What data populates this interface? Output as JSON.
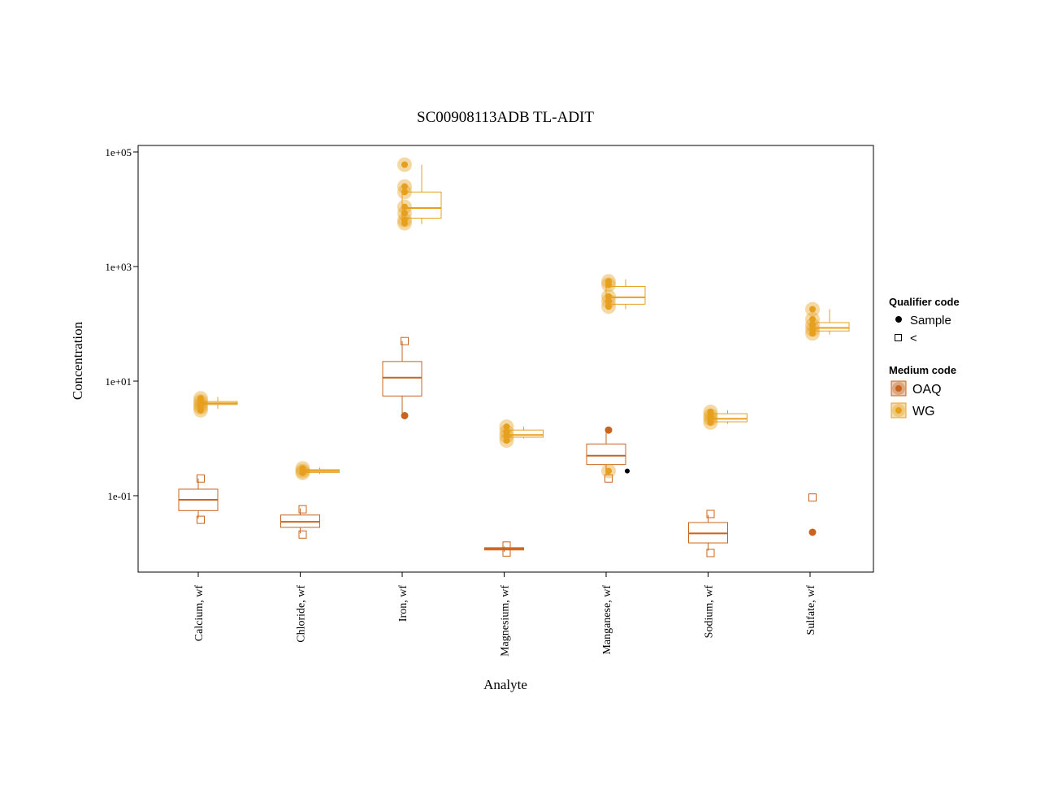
{
  "chart_data": {
    "type": "boxplot",
    "title": "SC00908113ADB TL-ADIT",
    "xlabel": "Analyte",
    "ylabel": "Concentration",
    "scale": "log10",
    "ylim": [
      0.004,
      110000
    ],
    "y_ticks": [
      {
        "value": 0.1,
        "label": "1e-01"
      },
      {
        "value": 10,
        "label": "1e+01"
      },
      {
        "value": 1000,
        "label": "1e+03"
      },
      {
        "value": 100000,
        "label": "1e+05"
      }
    ],
    "categories": [
      "Calcium, wf",
      "Chloride, wf",
      "Iron, wf",
      "Magnesium, wf",
      "Manganese, wf",
      "Sodium, wf",
      "Sulfate, wf"
    ],
    "legend": {
      "placement": "right",
      "qualifier_title": "Qualifier code",
      "qualifier_items": [
        {
          "label": "Sample",
          "shape": "filled-dot"
        },
        {
          "label": "<",
          "shape": "open-square"
        }
      ],
      "medium_title": "Medium code",
      "medium_items": [
        {
          "label": "OAQ",
          "color": "#C8641E"
        },
        {
          "label": "WG",
          "color": "#E6A01E"
        }
      ]
    },
    "colors": {
      "OAQ": "#C8641E",
      "WG": "#E6A01E",
      "sample_black": "#000000"
    },
    "series": [
      {
        "name": "OAQ",
        "boxes": [
          {
            "category": 0,
            "whisker_low": 0.04,
            "q1": 0.055,
            "median": 0.085,
            "q3": 0.13,
            "whisker_high": 0.2
          },
          {
            "category": 1,
            "whisker_low": 0.022,
            "q1": 0.028,
            "median": 0.035,
            "q3": 0.046,
            "whisker_high": 0.06
          },
          {
            "category": 2,
            "whisker_low": 2.8,
            "q1": 5.5,
            "median": 11.5,
            "q3": 22,
            "whisker_high": 50
          },
          {
            "category": 3,
            "whisker_low": 0.0105,
            "q1": 0.0113,
            "median": 0.0118,
            "q3": 0.0124,
            "whisker_high": 0.013
          },
          {
            "category": 4,
            "whisker_low": 0.23,
            "q1": 0.35,
            "median": 0.5,
            "q3": 0.8,
            "whisker_high": 1.25
          },
          {
            "category": 5,
            "whisker_low": 0.011,
            "q1": 0.015,
            "median": 0.022,
            "q3": 0.034,
            "whisker_high": 0.046
          }
        ],
        "points": [
          {
            "category": 0,
            "value": 0.2,
            "shape": "open-square"
          },
          {
            "category": 0,
            "value": 0.038,
            "shape": "open-square"
          },
          {
            "category": 1,
            "value": 0.058,
            "shape": "open-square"
          },
          {
            "category": 1,
            "value": 0.021,
            "shape": "open-square"
          },
          {
            "category": 2,
            "value": 50,
            "shape": "open-square"
          },
          {
            "category": 2,
            "value": 2.5,
            "shape": "filled-dot"
          },
          {
            "category": 3,
            "value": 0.0135,
            "shape": "open-square"
          },
          {
            "category": 3,
            "value": 0.0102,
            "shape": "open-square"
          },
          {
            "category": 4,
            "value": 1.4,
            "shape": "filled-dot"
          },
          {
            "category": 4,
            "value": 0.2,
            "shape": "open-square"
          },
          {
            "category": 5,
            "value": 0.048,
            "shape": "open-square"
          },
          {
            "category": 5,
            "value": 0.01,
            "shape": "open-square"
          },
          {
            "category": 6,
            "value": 0.093,
            "shape": "open-square"
          },
          {
            "category": 6,
            "value": 0.023,
            "shape": "filled-dot"
          }
        ]
      },
      {
        "name": "WG",
        "boxes": [
          {
            "category": 0,
            "whisker_low": 3.3,
            "q1": 3.9,
            "median": 4.1,
            "q3": 4.4,
            "whisker_high": 5.3
          },
          {
            "category": 1,
            "whisker_low": 0.24,
            "q1": 0.255,
            "median": 0.27,
            "q3": 0.285,
            "whisker_high": 0.31
          },
          {
            "category": 2,
            "whisker_low": 5500,
            "q1": 7000,
            "median": 10500,
            "q3": 20000,
            "whisker_high": 60000
          },
          {
            "category": 3,
            "whisker_low": 1.0,
            "q1": 1.05,
            "median": 1.15,
            "q3": 1.4,
            "whisker_high": 1.6
          },
          {
            "category": 4,
            "whisker_low": 180,
            "q1": 220,
            "median": 290,
            "q3": 450,
            "whisker_high": 600
          },
          {
            "category": 5,
            "whisker_low": 1.8,
            "q1": 1.95,
            "median": 2.2,
            "q3": 2.7,
            "whisker_high": 3.1
          },
          {
            "category": 6,
            "whisker_low": 65,
            "q1": 75,
            "median": 85,
            "q3": 105,
            "whisker_high": 180
          }
        ],
        "points": [
          {
            "category": 0,
            "value": 5.0,
            "shape": "filled-dot"
          },
          {
            "category": 0,
            "value": 4.4,
            "shape": "filled-dot"
          },
          {
            "category": 0,
            "value": 3.9,
            "shape": "filled-dot"
          },
          {
            "category": 0,
            "value": 3.5,
            "shape": "filled-dot"
          },
          {
            "category": 0,
            "value": 3.1,
            "shape": "filled-dot"
          },
          {
            "category": 1,
            "value": 0.3,
            "shape": "filled-dot"
          },
          {
            "category": 1,
            "value": 0.27,
            "shape": "filled-dot"
          },
          {
            "category": 1,
            "value": 0.25,
            "shape": "filled-dot"
          },
          {
            "category": 2,
            "value": 60000,
            "shape": "filled-dot"
          },
          {
            "category": 2,
            "value": 25000,
            "shape": "filled-dot"
          },
          {
            "category": 2,
            "value": 20000,
            "shape": "filled-dot"
          },
          {
            "category": 2,
            "value": 11000,
            "shape": "filled-dot"
          },
          {
            "category": 2,
            "value": 8500,
            "shape": "filled-dot"
          },
          {
            "category": 2,
            "value": 6500,
            "shape": "filled-dot"
          },
          {
            "category": 2,
            "value": 5700,
            "shape": "filled-dot"
          },
          {
            "category": 3,
            "value": 1.6,
            "shape": "filled-dot"
          },
          {
            "category": 3,
            "value": 1.3,
            "shape": "filled-dot"
          },
          {
            "category": 3,
            "value": 1.1,
            "shape": "filled-dot"
          },
          {
            "category": 3,
            "value": 0.92,
            "shape": "filled-dot"
          },
          {
            "category": 4,
            "value": 550,
            "shape": "filled-dot"
          },
          {
            "category": 4,
            "value": 480,
            "shape": "filled-dot"
          },
          {
            "category": 4,
            "value": 300,
            "shape": "filled-dot"
          },
          {
            "category": 4,
            "value": 250,
            "shape": "filled-dot"
          },
          {
            "category": 4,
            "value": 200,
            "shape": "filled-dot"
          },
          {
            "category": 4,
            "value": 0.27,
            "shape": "filled-dot"
          },
          {
            "category": 5,
            "value": 2.9,
            "shape": "filled-dot"
          },
          {
            "category": 5,
            "value": 2.5,
            "shape": "filled-dot"
          },
          {
            "category": 5,
            "value": 2.2,
            "shape": "filled-dot"
          },
          {
            "category": 5,
            "value": 1.9,
            "shape": "filled-dot"
          },
          {
            "category": 6,
            "value": 180,
            "shape": "filled-dot"
          },
          {
            "category": 6,
            "value": 120,
            "shape": "filled-dot"
          },
          {
            "category": 6,
            "value": 95,
            "shape": "filled-dot"
          },
          {
            "category": 6,
            "value": 80,
            "shape": "filled-dot"
          },
          {
            "category": 6,
            "value": 68,
            "shape": "filled-dot"
          }
        ]
      }
    ],
    "extra_points": [
      {
        "category": 4,
        "value": 0.27,
        "shape": "filled-dot",
        "qualifier": "Sample",
        "color": "#000000"
      }
    ]
  }
}
